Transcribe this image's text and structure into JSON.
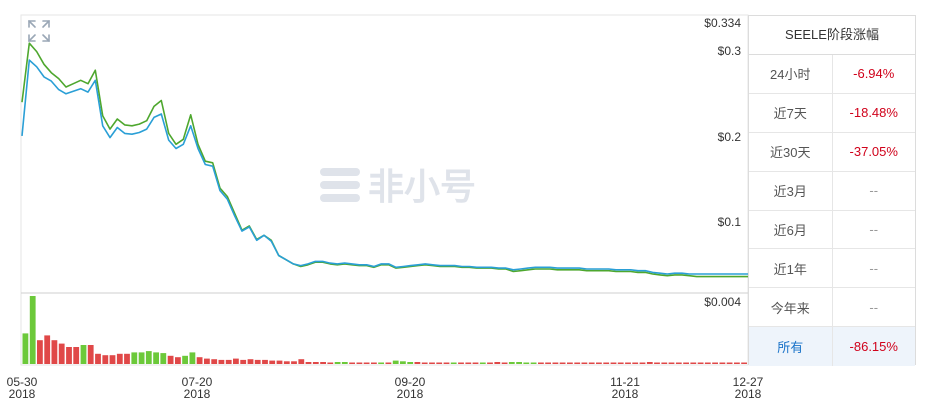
{
  "watermark": "非小号",
  "price_chart": {
    "y_tick_labels": [
      "$0.334",
      "$0.3",
      "$0.2",
      "$0.1",
      "$0.004"
    ],
    "x_tick_labels": [
      {
        "date": "05-30",
        "year": "2018"
      },
      {
        "date": "07-20",
        "year": "2018"
      },
      {
        "date": "09-20",
        "year": "2018"
      },
      {
        "date": "11-21",
        "year": "2018"
      },
      {
        "date": "12-27",
        "year": "2018"
      }
    ]
  },
  "stats": {
    "title": "SEELE阶段涨幅",
    "rows": [
      {
        "label": "24小时",
        "value": "-6.94%"
      },
      {
        "label": "近7天",
        "value": "-18.48%"
      },
      {
        "label": "近30天",
        "value": "-37.05%"
      },
      {
        "label": "近3月",
        "value": "--"
      },
      {
        "label": "近6月",
        "value": "--"
      },
      {
        "label": "近1年",
        "value": "--"
      },
      {
        "label": "今年来",
        "value": "--"
      },
      {
        "label": "所有",
        "value": "-86.15%"
      }
    ]
  },
  "colors": {
    "line_green": "#4ea72e",
    "line_blue": "#2a9fd6",
    "bar_up": "#6cc93a",
    "bar_down": "#e04848",
    "grid": "#e6e6e6",
    "negative": "#d0021b"
  },
  "chart_data": {
    "type": "line",
    "x_range": [
      "2018-05-30",
      "2018-12-27"
    ],
    "ylim": [
      0.004,
      0.334
    ],
    "series": [
      {
        "values": [
          0.24,
          0.31,
          0.3,
          0.285,
          0.275,
          0.268,
          0.258,
          0.262,
          0.266,
          0.262,
          0.278,
          0.224,
          0.208,
          0.22,
          0.213,
          0.212,
          0.214,
          0.218,
          0.235,
          0.242,
          0.203,
          0.19,
          0.196,
          0.225,
          0.19,
          0.17,
          0.168,
          0.138,
          0.128,
          0.108,
          0.088,
          0.093,
          0.077,
          0.082,
          0.076,
          0.058,
          0.053,
          0.048,
          0.045,
          0.047,
          0.05,
          0.05,
          0.048,
          0.047,
          0.048,
          0.047,
          0.046,
          0.046,
          0.044,
          0.047,
          0.047,
          0.043,
          0.044,
          0.045,
          0.046,
          0.047,
          0.046,
          0.045,
          0.045,
          0.045,
          0.044,
          0.044,
          0.043,
          0.043,
          0.043,
          0.042,
          0.042,
          0.039,
          0.04,
          0.041,
          0.042,
          0.042,
          0.042,
          0.041,
          0.041,
          0.041,
          0.041,
          0.04,
          0.04,
          0.04,
          0.04,
          0.039,
          0.039,
          0.039,
          0.038,
          0.038,
          0.036,
          0.035,
          0.034,
          0.035,
          0.035,
          0.034,
          0.033,
          0.033,
          0.033,
          0.033,
          0.033,
          0.033,
          0.033,
          0.033
        ]
      },
      {
        "values": [
          0.2,
          0.29,
          0.282,
          0.27,
          0.265,
          0.255,
          0.25,
          0.253,
          0.256,
          0.252,
          0.266,
          0.212,
          0.198,
          0.21,
          0.203,
          0.202,
          0.204,
          0.208,
          0.222,
          0.226,
          0.195,
          0.185,
          0.19,
          0.212,
          0.185,
          0.166,
          0.164,
          0.135,
          0.125,
          0.105,
          0.087,
          0.092,
          0.076,
          0.082,
          0.075,
          0.058,
          0.053,
          0.048,
          0.046,
          0.048,
          0.051,
          0.051,
          0.049,
          0.048,
          0.049,
          0.048,
          0.047,
          0.047,
          0.045,
          0.048,
          0.048,
          0.044,
          0.045,
          0.046,
          0.047,
          0.048,
          0.047,
          0.046,
          0.046,
          0.046,
          0.045,
          0.045,
          0.044,
          0.044,
          0.044,
          0.043,
          0.043,
          0.041,
          0.042,
          0.043,
          0.044,
          0.044,
          0.044,
          0.043,
          0.043,
          0.043,
          0.043,
          0.042,
          0.042,
          0.042,
          0.042,
          0.041,
          0.041,
          0.041,
          0.04,
          0.04,
          0.038,
          0.037,
          0.036,
          0.037,
          0.037,
          0.036,
          0.036,
          0.036,
          0.036,
          0.036,
          0.036,
          0.036,
          0.036,
          0.036
        ]
      }
    ],
    "volume": [
      {
        "v": 0.45,
        "up": true
      },
      {
        "v": 1.0,
        "up": true
      },
      {
        "v": 0.35,
        "up": false
      },
      {
        "v": 0.42,
        "up": false
      },
      {
        "v": 0.35,
        "up": false
      },
      {
        "v": 0.3,
        "up": false
      },
      {
        "v": 0.25,
        "up": false
      },
      {
        "v": 0.25,
        "up": false
      },
      {
        "v": 0.28,
        "up": true
      },
      {
        "v": 0.28,
        "up": false
      },
      {
        "v": 0.15,
        "up": false
      },
      {
        "v": 0.13,
        "up": false
      },
      {
        "v": 0.13,
        "up": false
      },
      {
        "v": 0.15,
        "up": false
      },
      {
        "v": 0.15,
        "up": false
      },
      {
        "v": 0.17,
        "up": true
      },
      {
        "v": 0.17,
        "up": true
      },
      {
        "v": 0.19,
        "up": true
      },
      {
        "v": 0.17,
        "up": true
      },
      {
        "v": 0.16,
        "up": true
      },
      {
        "v": 0.12,
        "up": false
      },
      {
        "v": 0.1,
        "up": false
      },
      {
        "v": 0.12,
        "up": true
      },
      {
        "v": 0.17,
        "up": true
      },
      {
        "v": 0.1,
        "up": false
      },
      {
        "v": 0.08,
        "up": false
      },
      {
        "v": 0.07,
        "up": false
      },
      {
        "v": 0.06,
        "up": false
      },
      {
        "v": 0.06,
        "up": false
      },
      {
        "v": 0.08,
        "up": false
      },
      {
        "v": 0.06,
        "up": false
      },
      {
        "v": 0.07,
        "up": false
      },
      {
        "v": 0.06,
        "up": false
      },
      {
        "v": 0.06,
        "up": false
      },
      {
        "v": 0.05,
        "up": false
      },
      {
        "v": 0.05,
        "up": false
      },
      {
        "v": 0.04,
        "up": false
      },
      {
        "v": 0.04,
        "up": false
      },
      {
        "v": 0.07,
        "up": false
      },
      {
        "v": 0.03,
        "up": false
      },
      {
        "v": 0.03,
        "up": false
      },
      {
        "v": 0.03,
        "up": false
      },
      {
        "v": 0.02,
        "up": false
      },
      {
        "v": 0.03,
        "up": true
      },
      {
        "v": 0.03,
        "up": true
      },
      {
        "v": 0.02,
        "up": false
      },
      {
        "v": 0.02,
        "up": false
      },
      {
        "v": 0.02,
        "up": false
      },
      {
        "v": 0.02,
        "up": false
      },
      {
        "v": 0.02,
        "up": true
      },
      {
        "v": 0.02,
        "up": false
      },
      {
        "v": 0.05,
        "up": true
      },
      {
        "v": 0.04,
        "up": true
      },
      {
        "v": 0.03,
        "up": true
      },
      {
        "v": 0.03,
        "up": false
      },
      {
        "v": 0.02,
        "up": false
      },
      {
        "v": 0.02,
        "up": false
      },
      {
        "v": 0.02,
        "up": false
      },
      {
        "v": 0.02,
        "up": false
      },
      {
        "v": 0.02,
        "up": true
      },
      {
        "v": 0.02,
        "up": false
      },
      {
        "v": 0.02,
        "up": false
      },
      {
        "v": 0.02,
        "up": false
      },
      {
        "v": 0.02,
        "up": true
      },
      {
        "v": 0.02,
        "up": false
      },
      {
        "v": 0.03,
        "up": false
      },
      {
        "v": 0.02,
        "up": false
      },
      {
        "v": 0.03,
        "up": true
      },
      {
        "v": 0.03,
        "up": true
      },
      {
        "v": 0.02,
        "up": true
      },
      {
        "v": 0.02,
        "up": true
      },
      {
        "v": 0.02,
        "up": false
      },
      {
        "v": 0.02,
        "up": false
      },
      {
        "v": 0.02,
        "up": false
      },
      {
        "v": 0.02,
        "up": false
      },
      {
        "v": 0.02,
        "up": false
      },
      {
        "v": 0.02,
        "up": false
      },
      {
        "v": 0.02,
        "up": false
      },
      {
        "v": 0.02,
        "up": false
      },
      {
        "v": 0.02,
        "up": false
      },
      {
        "v": 0.02,
        "up": false
      },
      {
        "v": 0.02,
        "up": false
      },
      {
        "v": 0.02,
        "up": false
      },
      {
        "v": 0.02,
        "up": false
      },
      {
        "v": 0.02,
        "up": false
      },
      {
        "v": 0.02,
        "up": false
      },
      {
        "v": 0.03,
        "up": false
      },
      {
        "v": 0.02,
        "up": false
      },
      {
        "v": 0.02,
        "up": false
      },
      {
        "v": 0.02,
        "up": false
      },
      {
        "v": 0.02,
        "up": false
      },
      {
        "v": 0.02,
        "up": false
      },
      {
        "v": 0.02,
        "up": false
      },
      {
        "v": 0.02,
        "up": false
      },
      {
        "v": 0.02,
        "up": false
      },
      {
        "v": 0.02,
        "up": false
      },
      {
        "v": 0.02,
        "up": false
      },
      {
        "v": 0.02,
        "up": false
      },
      {
        "v": 0.02,
        "up": false
      },
      {
        "v": 0.02,
        "up": false
      }
    ]
  }
}
